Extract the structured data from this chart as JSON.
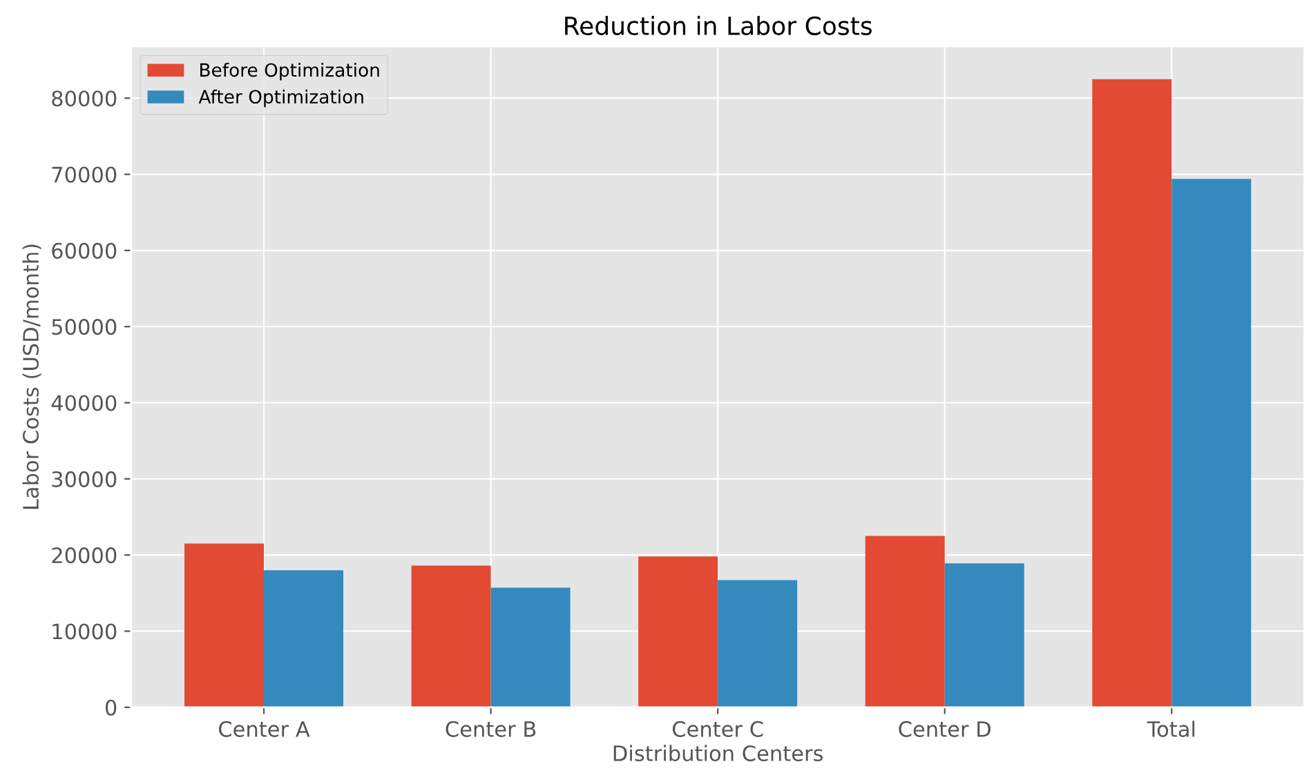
{
  "chart_data": {
    "type": "bar",
    "title": "Reduction in Labor Costs",
    "xlabel": "Distribution Centers",
    "ylabel": "Labor Costs (USD/month)",
    "categories": [
      "Center A",
      "Center B",
      "Center C",
      "Center D",
      "Total"
    ],
    "series": [
      {
        "name": "Before Optimization",
        "color": "#e24a33",
        "values": [
          21500,
          18600,
          19800,
          22500,
          82500
        ]
      },
      {
        "name": "After Optimization",
        "color": "#348abd",
        "values": [
          18000,
          15700,
          16700,
          18900,
          69400
        ]
      }
    ],
    "ylim": [
      0,
      86800
    ],
    "yticks": [
      0,
      10000,
      20000,
      30000,
      40000,
      50000,
      60000,
      70000,
      80000
    ],
    "grid": true,
    "legend": "top left"
  }
}
